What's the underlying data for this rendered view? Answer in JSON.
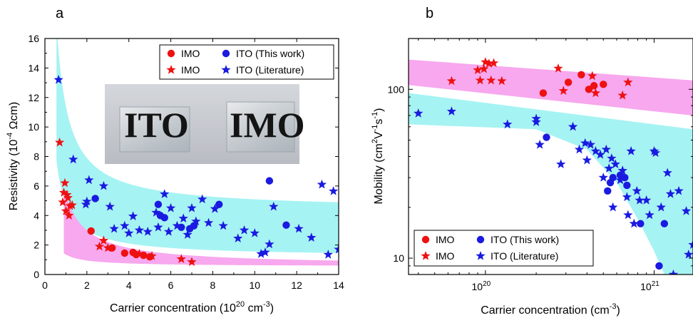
{
  "colors": {
    "imo": "#ee1111",
    "ito": "#1a1ae0",
    "imo_band": "#f7a8ee",
    "ito_band": "#a6f3f3"
  },
  "chart_data": [
    {
      "panel_label": "a",
      "type": "scatter",
      "xlabel": "Carrier concentration (10",
      "xlabel_sup": "20",
      "xlabel_mid": " cm",
      "xlabel_sup2": "-3",
      "xlabel_end": ")",
      "ylabel": "Resistivity (10",
      "ylabel_sup": "-4",
      "ylabel_end": " Ωcm)",
      "xlim": [
        0,
        14
      ],
      "ylim": [
        0,
        16
      ],
      "xticks": [
        0,
        2,
        4,
        6,
        8,
        10,
        12,
        14
      ],
      "yticks": [
        0,
        2,
        4,
        6,
        8,
        10,
        12,
        14,
        16
      ],
      "legend_position": "top-right",
      "legend": [
        {
          "label": "IMO",
          "series": "IMO (This work)"
        },
        {
          "label": "ITO (This work)",
          "series": "ITO (This work)"
        },
        {
          "label": "IMO",
          "series": "IMO (Literature)"
        },
        {
          "label": "ITO (Literature)",
          "series": "ITO (Literature)"
        }
      ],
      "inset_photo_labels": [
        "ITO",
        "IMO"
      ],
      "bands": [
        {
          "name": "ITO",
          "color_key": "ito_band",
          "x_start": 0.55,
          "x_end": 14,
          "lower_k": 3.6,
          "lower_c": 1.2,
          "upper_k": 7.0,
          "upper_c": 4.4
        },
        {
          "name": "IMO",
          "color_key": "imo_band",
          "x_start": 0.9,
          "x_end": 14,
          "lower_k": 0.8,
          "lower_c": 0.55,
          "upper_k": 4.8,
          "upper_c": 0.6
        }
      ],
      "series": [
        {
          "name": "IMO (This work)",
          "marker": "circle",
          "color_key": "imo",
          "points": [
            [
              2.2,
              2.95
            ],
            [
              3.2,
              1.8
            ],
            [
              3.8,
              1.45
            ],
            [
              4.2,
              1.5
            ],
            [
              4.35,
              1.35
            ],
            [
              4.7,
              1.3
            ],
            [
              5.0,
              1.2
            ]
          ]
        },
        {
          "name": "ITO (This work)",
          "marker": "circle",
          "color_key": "ito",
          "points": [
            [
              2.4,
              5.15
            ],
            [
              5.4,
              4.75
            ],
            [
              5.5,
              4.0
            ],
            [
              5.7,
              3.85
            ],
            [
              6.5,
              3.2
            ],
            [
              6.9,
              3.1
            ],
            [
              7.1,
              3.3
            ],
            [
              8.3,
              4.75
            ],
            [
              10.7,
              6.35
            ],
            [
              11.5,
              3.35
            ]
          ]
        },
        {
          "name": "IMO (Literature)",
          "marker": "star",
          "color_key": "imo",
          "points": [
            [
              0.7,
              8.95
            ],
            [
              0.95,
              6.2
            ],
            [
              0.9,
              5.55
            ],
            [
              1.05,
              5.4
            ],
            [
              1.1,
              5.2
            ],
            [
              0.85,
              4.9
            ],
            [
              1.0,
              4.3
            ],
            [
              1.2,
              4.65
            ],
            [
              1.15,
              4.0
            ],
            [
              1.3,
              4.7
            ],
            [
              2.6,
              1.9
            ],
            [
              2.8,
              2.3
            ],
            [
              3.0,
              1.8
            ],
            [
              4.5,
              1.4
            ],
            [
              5.1,
              1.25
            ],
            [
              6.5,
              1.05
            ],
            [
              7.0,
              0.85
            ]
          ]
        },
        {
          "name": "ITO (Literature)",
          "marker": "star",
          "color_key": "ito",
          "points": [
            [
              0.65,
              13.2
            ],
            [
              1.35,
              7.8
            ],
            [
              2.1,
              6.4
            ],
            [
              2.0,
              4.95
            ],
            [
              1.95,
              4.75
            ],
            [
              2.8,
              6.0
            ],
            [
              3.1,
              4.6
            ],
            [
              3.3,
              3.1
            ],
            [
              3.8,
              3.3
            ],
            [
              4.0,
              2.8
            ],
            [
              4.2,
              3.95
            ],
            [
              4.5,
              3.0
            ],
            [
              4.9,
              2.9
            ],
            [
              5.3,
              4.2
            ],
            [
              5.4,
              3.2
            ],
            [
              5.7,
              5.45
            ],
            [
              5.9,
              2.9
            ],
            [
              6.0,
              4.5
            ],
            [
              6.3,
              3.3
            ],
            [
              6.6,
              3.8
            ],
            [
              6.8,
              2.7
            ],
            [
              7.0,
              4.5
            ],
            [
              7.2,
              3.6
            ],
            [
              7.5,
              5.1
            ],
            [
              7.8,
              3.5
            ],
            [
              8.1,
              4.45
            ],
            [
              8.5,
              3.3
            ],
            [
              9.2,
              2.45
            ],
            [
              9.5,
              3.0
            ],
            [
              10.0,
              2.8
            ],
            [
              10.3,
              1.4
            ],
            [
              10.5,
              1.5
            ],
            [
              10.7,
              2.05
            ],
            [
              10.9,
              4.6
            ],
            [
              12.1,
              3.1
            ],
            [
              12.7,
              2.5
            ],
            [
              13.2,
              6.1
            ],
            [
              13.5,
              1.35
            ],
            [
              13.75,
              5.65
            ],
            [
              14.0,
              1.7
            ]
          ]
        }
      ]
    },
    {
      "panel_label": "b",
      "type": "scatter",
      "xscale": "log",
      "yscale": "log",
      "xlabel": "Carrier concentration (cm",
      "xlabel_sup": "-3",
      "xlabel_end": ")",
      "ylabel": "Mobility (cm",
      "ylabel_sup": "2",
      "ylabel_mid": "V",
      "ylabel_sup2": "-1",
      "ylabel_mid2": "s",
      "ylabel_sup3": "-1",
      "ylabel_end": ")",
      "xlim": [
        3.5e+19,
        1.7e+21
      ],
      "ylim": [
        8,
        200
      ],
      "xticks": [
        {
          "value": 1e+20,
          "base": "10",
          "exp": "20"
        },
        {
          "value": 1e+21,
          "base": "10",
          "exp": "21"
        }
      ],
      "yticks": [
        {
          "value": 10,
          "label": "10"
        },
        {
          "value": 100,
          "label": "100"
        }
      ],
      "legend_position": "bottom-left",
      "legend": [
        {
          "label": "IMO",
          "series": "IMO (This work)"
        },
        {
          "label": "ITO (This work)",
          "series": "ITO (This work)"
        },
        {
          "label": "IMO",
          "series": "IMO (Literature)"
        },
        {
          "label": "ITO (Literature)",
          "series": "ITO (Literature)"
        }
      ],
      "bands": [
        {
          "name": "IMO",
          "color_key": "imo_band",
          "upper": [
            [
              3.5e+19,
              150
            ],
            [
              1.7e+21,
              113
            ]
          ],
          "lower": [
            [
              3.5e+19,
              106
            ],
            [
              1.7e+21,
              70
            ]
          ]
        },
        {
          "name": "ITO",
          "color_key": "ito_band",
          "upper": [
            [
              3.5e+19,
              95
            ],
            [
              1.7e+21,
              58
            ]
          ],
          "lower": [
            [
              3.5e+19,
              62
            ],
            [
              2e+20,
              58
            ],
            [
              4e+20,
              44
            ],
            [
              6e+20,
              28
            ],
            [
              8e+20,
              17
            ],
            [
              1e+21,
              11
            ],
            [
              1.15e+21,
              8
            ]
          ]
        }
      ],
      "series": [
        {
          "name": "IMO (This work)",
          "marker": "circle",
          "color_key": "imo",
          "points": [
            [
              2.2e+20,
              95
            ],
            [
              3.1e+20,
              110
            ],
            [
              3.7e+20,
              122
            ],
            [
              4.1e+20,
              100
            ],
            [
              4.4e+20,
              105
            ],
            [
              5e+20,
              107
            ]
          ]
        },
        {
          "name": "ITO (This work)",
          "marker": "circle",
          "color_key": "ito",
          "points": [
            [
              2.3e+20,
              52
            ],
            [
              5.3e+20,
              25
            ],
            [
              5.5e+20,
              28
            ],
            [
              5.7e+20,
              30
            ],
            [
              6.3e+20,
              31
            ],
            [
              6.7e+20,
              30
            ],
            [
              6.9e+20,
              27
            ],
            [
              8.3e+20,
              16
            ],
            [
              1.07e+21,
              9
            ],
            [
              1.15e+21,
              16
            ]
          ]
        },
        {
          "name": "IMO (Literature)",
          "marker": "star",
          "color_key": "imo",
          "points": [
            [
              6.3e+19,
              112
            ],
            [
              9e+19,
              130
            ],
            [
              9.3e+19,
              113
            ],
            [
              9.8e+19,
              132
            ],
            [
              1e+20,
              145
            ],
            [
              1.05e+20,
              142
            ],
            [
              1.08e+20,
              113
            ],
            [
              1.12e+20,
              143
            ],
            [
              1.25e+20,
              112
            ],
            [
              2.7e+20,
              133
            ],
            [
              2.9e+20,
              98
            ],
            [
              4.3e+20,
              120
            ],
            [
              4.5e+20,
              95
            ],
            [
              6.5e+20,
              92
            ],
            [
              7e+20,
              110
            ]
          ]
        },
        {
          "name": "ITO (Literature)",
          "marker": "star",
          "color_key": "ito",
          "points": [
            [
              4e+19,
              72
            ],
            [
              6.3e+19,
              74
            ],
            [
              1.35e+20,
              62
            ],
            [
              2e+20,
              67
            ],
            [
              2e+20,
              64
            ],
            [
              2.1e+20,
              47
            ],
            [
              2.8e+20,
              36
            ],
            [
              3.3e+20,
              60
            ],
            [
              3.6e+20,
              44
            ],
            [
              3.9e+20,
              48
            ],
            [
              4e+20,
              38
            ],
            [
              4.2e+20,
              47
            ],
            [
              4.5e+20,
              43
            ],
            [
              4.8e+20,
              41
            ],
            [
              5e+20,
              30
            ],
            [
              5.2e+20,
              44
            ],
            [
              5.4e+20,
              34
            ],
            [
              5.6e+20,
              39
            ],
            [
              5.7e+20,
              20
            ],
            [
              5.9e+20,
              36
            ],
            [
              6.3e+20,
              29
            ],
            [
              6.5e+20,
              33
            ],
            [
              6.9e+20,
              23
            ],
            [
              7e+20,
              18
            ],
            [
              7.3e+20,
              43
            ],
            [
              7.6e+20,
              16
            ],
            [
              7.9e+20,
              25
            ],
            [
              8.2e+20,
              22
            ],
            [
              9e+20,
              22
            ],
            [
              9.4e+20,
              18
            ],
            [
              1e+21,
              43
            ],
            [
              1.02e+21,
              42
            ],
            [
              1.1e+21,
              20
            ],
            [
              1.2e+21,
              32
            ],
            [
              1.25e+21,
              24
            ],
            [
              1.3e+21,
              8
            ],
            [
              1.4e+21,
              25
            ],
            [
              1.55e+21,
              19
            ],
            [
              1.6e+21,
              10.5
            ],
            [
              1.7e+21,
              12
            ]
          ]
        }
      ]
    }
  ]
}
